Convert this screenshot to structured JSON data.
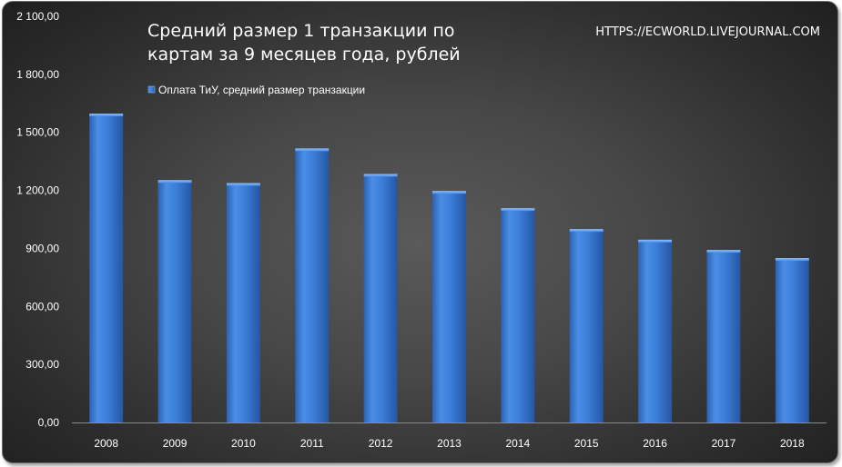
{
  "chart_data": {
    "type": "bar",
    "title_lines": [
      "Средний размер 1 транзакции по",
      "картам за 9 месяцев года,  рублей"
    ],
    "source": "HTTPS://ECWORLD.LIVEJOURNAL.COM",
    "categories": [
      "2008",
      "2009",
      "2010",
      "2011",
      "2012",
      "2013",
      "2014",
      "2015",
      "2016",
      "2017",
      "2018"
    ],
    "series": [
      {
        "name": "Оплата ТиУ, средний размер транзакции",
        "values": [
          1597,
          1253,
          1238,
          1417,
          1285,
          1197,
          1108,
          1000,
          945,
          892,
          850
        ],
        "color": "#3d7fd6"
      }
    ],
    "yticks": [
      "0,00",
      "300,00",
      "600,00",
      "900,00",
      "1 200,00",
      "1 500,00",
      "1 800,00",
      "2 100,00"
    ],
    "ylim": [
      0,
      2100
    ],
    "ystep": 300,
    "legend_position": "top-left",
    "grid": false
  }
}
